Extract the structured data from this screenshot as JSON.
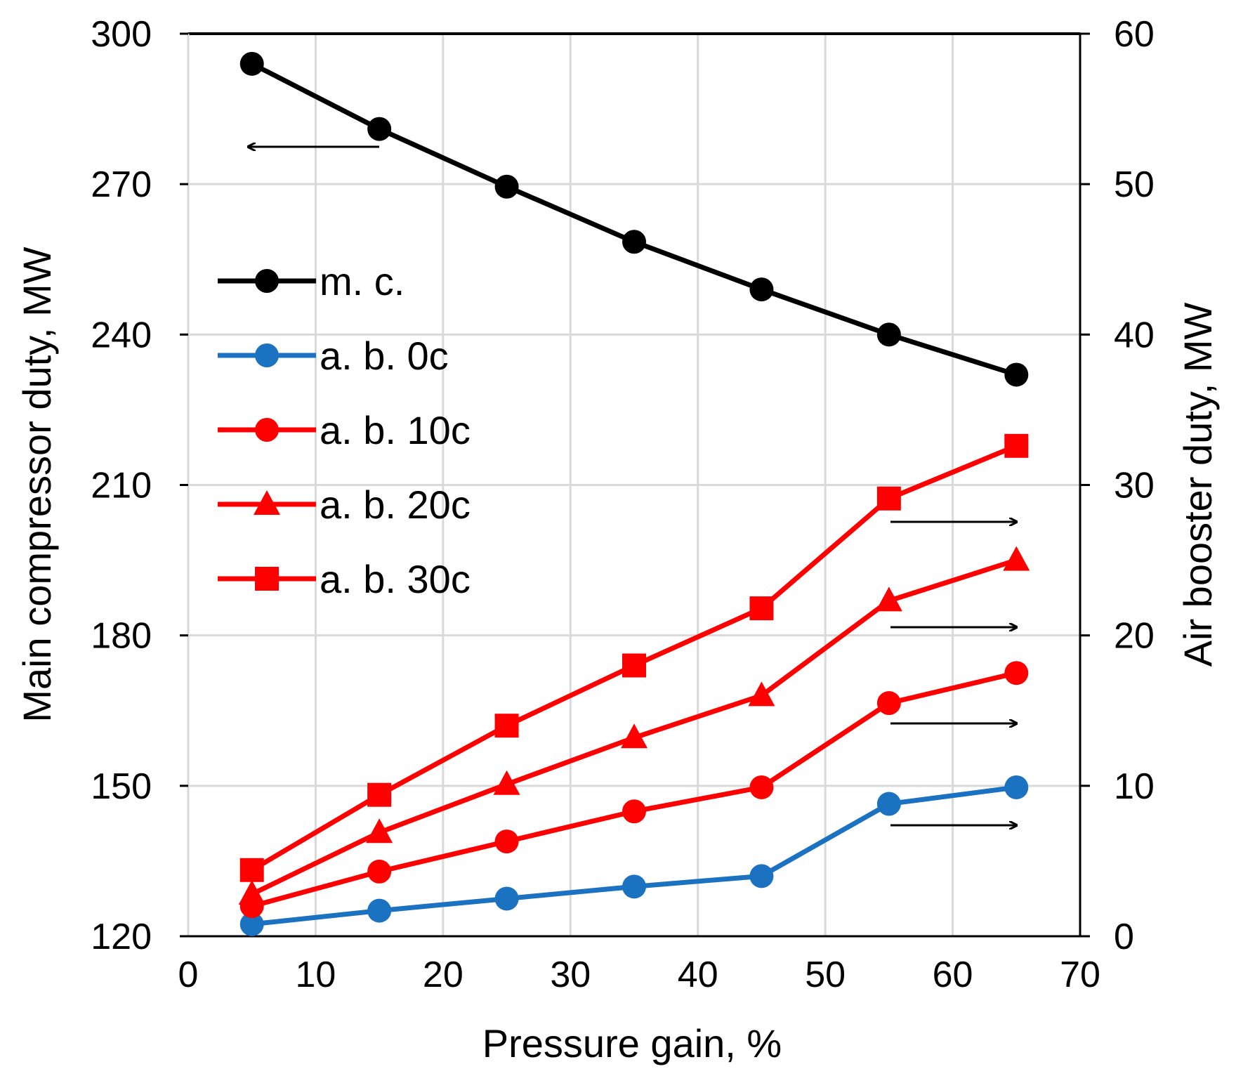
{
  "chart_data": {
    "type": "line",
    "title": "",
    "xlabel": "Pressure gain, %",
    "ylabel_left": "Main compressor duty, MW",
    "ylabel_right": "Air booster duty, MW",
    "xlim": [
      0,
      70
    ],
    "ylim_left": [
      120,
      300
    ],
    "ylim_right": [
      0,
      60
    ],
    "x_ticks": [
      "0",
      "10",
      "20",
      "30",
      "40",
      "50",
      "60",
      "70"
    ],
    "y_left_ticks": [
      "120",
      "150",
      "180",
      "210",
      "240",
      "270",
      "300"
    ],
    "y_right_ticks": [
      "0",
      "10",
      "20",
      "30",
      "40",
      "50",
      "60"
    ],
    "grid": true,
    "legend_position": "upper-left",
    "x": [
      5,
      15,
      25,
      35,
      45,
      55,
      65
    ],
    "series": [
      {
        "name": "m. c.",
        "axis": "left",
        "color": "#000000",
        "marker": "circle",
        "values": [
          294,
          281,
          269.5,
          258.5,
          249,
          240,
          232
        ]
      },
      {
        "name": "a. b. 0c",
        "axis": "right",
        "color": "#1a72c0",
        "marker": "circle",
        "values": [
          0.8,
          1.7,
          2.5,
          3.3,
          4.0,
          8.8,
          9.9
        ]
      },
      {
        "name": "a. b. 10c",
        "axis": "right",
        "color": "#ff0000",
        "marker": "circle",
        "values": [
          2.0,
          4.3,
          6.3,
          8.3,
          9.9,
          15.5,
          17.5
        ]
      },
      {
        "name": "a. b. 20c",
        "axis": "right",
        "color": "#ff0000",
        "marker": "triangle",
        "values": [
          2.8,
          6.9,
          10.1,
          13.2,
          16.0,
          22.3,
          25.0
        ]
      },
      {
        "name": "a. b. 30c",
        "axis": "right",
        "color": "#ff0000",
        "marker": "square",
        "values": [
          4.4,
          9.4,
          14.0,
          18.0,
          21.8,
          29.1,
          32.6
        ]
      }
    ],
    "annotations": [
      {
        "type": "arrow",
        "direction": "left",
        "points_to": "left axis",
        "series": "m. c."
      },
      {
        "type": "arrow",
        "direction": "right",
        "points_to": "right axis",
        "series": "a. b. 30c"
      },
      {
        "type": "arrow",
        "direction": "right",
        "points_to": "right axis",
        "series": "a. b. 20c"
      },
      {
        "type": "arrow",
        "direction": "right",
        "points_to": "right axis",
        "series": "a. b. 10c"
      },
      {
        "type": "arrow",
        "direction": "right",
        "points_to": "right axis",
        "series": "a. b. 0c"
      }
    ]
  }
}
